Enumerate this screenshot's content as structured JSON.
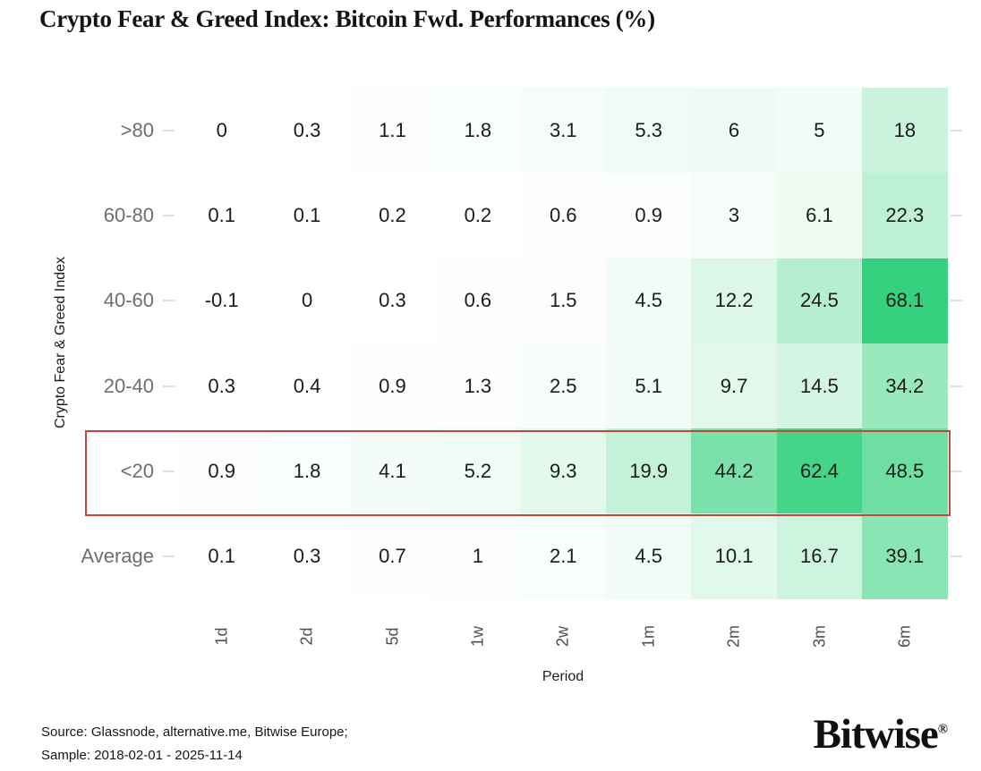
{
  "title": "Crypto Fear & Greed Index: Bitcoin Fwd. Performances (%)",
  "chart_data": {
    "type": "heatmap",
    "title": "Crypto Fear & Greed Index: Bitcoin Fwd. Performances (%)",
    "xlabel": "Period",
    "ylabel": "Crypto Fear & Greed Index",
    "x_categories": [
      "1d",
      "2d",
      "5d",
      "1w",
      "2w",
      "1m",
      "2m",
      "3m",
      "6m"
    ],
    "y_categories": [
      ">80",
      "60-80",
      "40-60",
      "20-40",
      "<20",
      "Average"
    ],
    "series": [
      {
        "name": ">80",
        "values": [
          0,
          0.3,
          1.1,
          1.8,
          3.1,
          5.3,
          6,
          5,
          18
        ]
      },
      {
        "name": "60-80",
        "values": [
          0.1,
          0.1,
          0.2,
          0.2,
          0.6,
          0.9,
          3,
          6.1,
          22.3
        ]
      },
      {
        "name": "40-60",
        "values": [
          -0.1,
          0,
          0.3,
          0.6,
          1.5,
          4.5,
          12.2,
          24.5,
          68.1
        ]
      },
      {
        "name": "20-40",
        "values": [
          0.3,
          0.4,
          0.9,
          1.3,
          2.5,
          5.1,
          9.7,
          14.5,
          34.2
        ]
      },
      {
        "name": "<20",
        "values": [
          0.9,
          1.8,
          4.1,
          5.2,
          9.3,
          19.9,
          44.2,
          62.4,
          48.5
        ]
      },
      {
        "name": "Average",
        "values": [
          0.1,
          0.3,
          0.7,
          1,
          2.1,
          4.5,
          10.1,
          16.7,
          39.1
        ]
      }
    ],
    "highlighted_row": "<20",
    "highlight_color": "#c2463a",
    "colormap": {
      "low": "#ffffff",
      "high": "#34d17e",
      "domain": [
        0,
        68.1
      ]
    },
    "grid": false,
    "legend": false
  },
  "footer": {
    "source_line1": "Source: Glassnode, alternative.me, Bitwise Europe;",
    "source_line2": "Sample: 2018-02-01 - 2025-11-14",
    "brand": "Bitwise",
    "registered_mark": "®"
  }
}
